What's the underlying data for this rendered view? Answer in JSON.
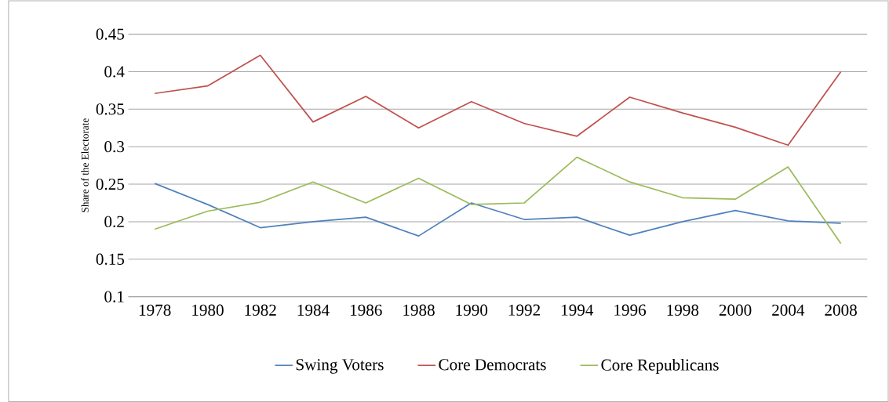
{
  "chart_data": {
    "type": "line",
    "ylabel": "Share of the Electorate",
    "categories": [
      "1978",
      "1980",
      "1982",
      "1984",
      "1986",
      "1988",
      "1990",
      "1992",
      "1994",
      "1996",
      "1998",
      "2000",
      "2004",
      "2008"
    ],
    "series": [
      {
        "name": "Swing Voters",
        "color": "#4f81bd",
        "values": [
          0.251,
          0.223,
          0.192,
          0.2,
          0.206,
          0.181,
          0.225,
          0.203,
          0.206,
          0.182,
          0.2,
          0.215,
          0.201,
          0.198
        ]
      },
      {
        "name": "Core Democrats",
        "color": "#c0504d",
        "values": [
          0.371,
          0.381,
          0.422,
          0.333,
          0.367,
          0.325,
          0.36,
          0.331,
          0.314,
          0.366,
          0.345,
          0.326,
          0.302,
          0.4
        ]
      },
      {
        "name": "Core Republicans",
        "color": "#9bbb59",
        "values": [
          0.19,
          0.214,
          0.226,
          0.253,
          0.225,
          0.258,
          0.223,
          0.225,
          0.286,
          0.253,
          0.232,
          0.23,
          0.273,
          0.171
        ]
      }
    ],
    "ylim": [
      0.1,
      0.45
    ],
    "yticks": [
      0.1,
      0.15,
      0.2,
      0.25,
      0.3,
      0.35,
      0.4,
      0.45
    ],
    "grid": "y",
    "legend": "bottom",
    "marker": "none",
    "line_style": "solid"
  }
}
